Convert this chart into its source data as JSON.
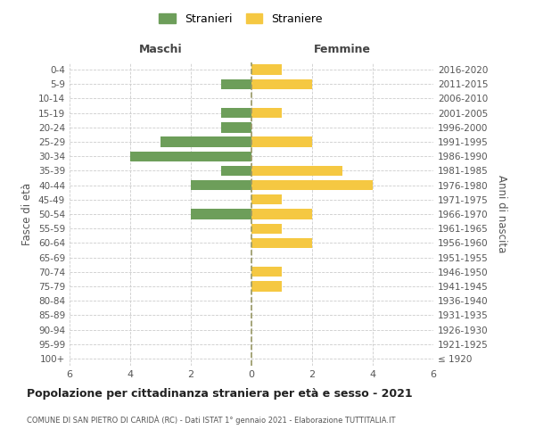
{
  "age_groups": [
    "0-4",
    "5-9",
    "10-14",
    "15-19",
    "20-24",
    "25-29",
    "30-34",
    "35-39",
    "40-44",
    "45-49",
    "50-54",
    "55-59",
    "60-64",
    "65-69",
    "70-74",
    "75-79",
    "80-84",
    "85-89",
    "90-94",
    "95-99",
    "100+"
  ],
  "birth_years": [
    "2016-2020",
    "2011-2015",
    "2006-2010",
    "2001-2005",
    "1996-2000",
    "1991-1995",
    "1986-1990",
    "1981-1985",
    "1976-1980",
    "1971-1975",
    "1966-1970",
    "1961-1965",
    "1956-1960",
    "1951-1955",
    "1946-1950",
    "1941-1945",
    "1936-1940",
    "1931-1935",
    "1926-1930",
    "1921-1925",
    "≤ 1920"
  ],
  "males": [
    0,
    1,
    0,
    1,
    1,
    3,
    4,
    1,
    2,
    0,
    2,
    0,
    0,
    0,
    0,
    0,
    0,
    0,
    0,
    0,
    0
  ],
  "females": [
    1,
    2,
    0,
    1,
    0,
    2,
    0,
    3,
    4,
    1,
    2,
    1,
    2,
    0,
    1,
    1,
    0,
    0,
    0,
    0,
    0
  ],
  "male_color": "#6d9e5a",
  "female_color": "#f5c842",
  "title": "Popolazione per cittadinanza straniera per età e sesso - 2021",
  "subtitle": "COMUNE DI SAN PIETRO DI CARIDÀ (RC) - Dati ISTAT 1° gennaio 2021 - Elaborazione TUTTITALIA.IT",
  "header_left": "Maschi",
  "header_right": "Femmine",
  "ylabel_left": "Fasce di età",
  "ylabel_right": "Anni di nascita",
  "legend_male": "Stranieri",
  "legend_female": "Straniere",
  "xlim": 6,
  "background_color": "#ffffff",
  "grid_color": "#cccccc"
}
